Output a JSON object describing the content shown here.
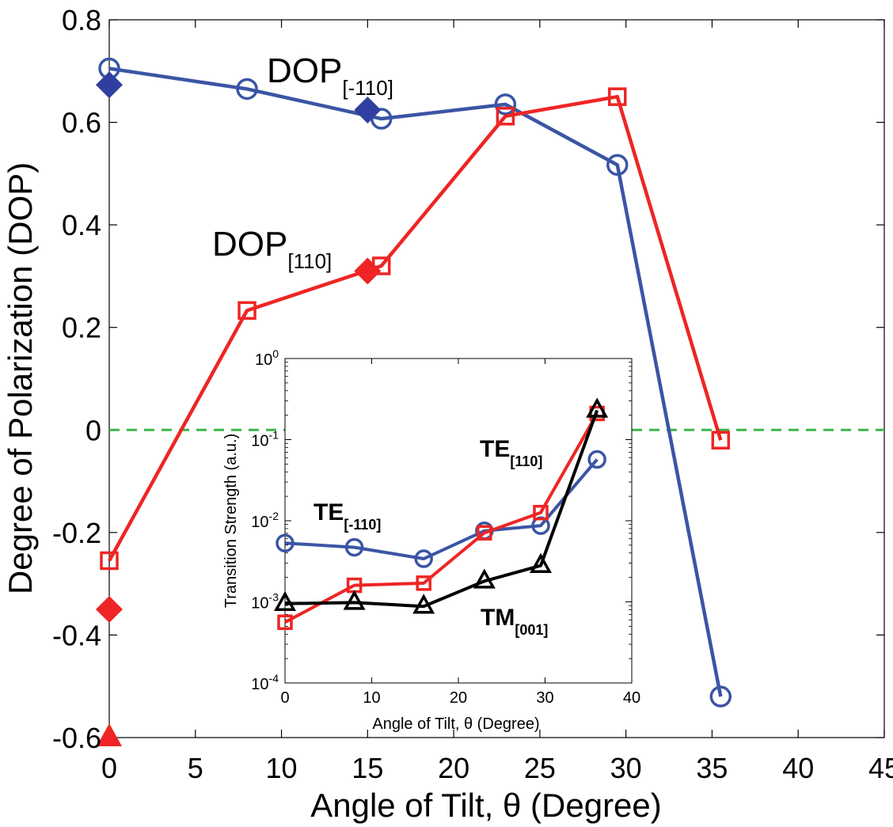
{
  "chart_data": [
    {
      "id": "main",
      "type": "line",
      "xlabel": "Angle of Tilt, θ (Degree)",
      "ylabel": "Degree of Polarization (DOP)",
      "xlim": [
        0,
        45
      ],
      "ylim": [
        -0.6,
        0.8
      ],
      "xticks": [
        "0",
        "5",
        "10",
        "15",
        "20",
        "25",
        "30",
        "35",
        "40",
        "45"
      ],
      "xtick_values": [
        0,
        5,
        10,
        15,
        20,
        25,
        30,
        35,
        40,
        45
      ],
      "yticks": [
        "-0.6",
        "-0.4",
        "-0.2",
        "0",
        "0.2",
        "0.4",
        "0.6",
        "0.8"
      ],
      "ytick_values": [
        -0.6,
        -0.4,
        -0.2,
        0,
        0.2,
        0.4,
        0.6,
        0.8
      ],
      "reference_line": {
        "y": 0,
        "color": "#3db54a",
        "style": "dashed"
      },
      "series": [
        {
          "name": "DOP[-110]",
          "color": "#3a55a4",
          "marker": "circle",
          "x": [
            0,
            8,
            15.8,
            23,
            29.5,
            35.5
          ],
          "y": [
            0.705,
            0.665,
            0.607,
            0.635,
            0.517,
            -0.52
          ]
        },
        {
          "name": "DOP[110]",
          "color": "#ee2524",
          "marker": "square",
          "x": [
            0,
            8,
            15.8,
            23,
            29.5,
            35.5
          ],
          "y": [
            -0.255,
            0.233,
            0.32,
            0.612,
            0.65,
            -0.02
          ]
        },
        {
          "name": "DOP[-110] (filled)",
          "color": "#303f9f",
          "marker": "diamond",
          "x": [
            0,
            15
          ],
          "y": [
            0.673,
            0.624
          ]
        },
        {
          "name": "DOP[110] (filled)",
          "color": "#ee2524",
          "marker": "diamond",
          "x": [
            0,
            15
          ],
          "y": [
            -0.35,
            0.31
          ]
        },
        {
          "name": "filled triangle",
          "color": "#ee2524",
          "marker": "triangle",
          "x": [
            0
          ],
          "y": [
            -0.6
          ]
        }
      ],
      "annotations": {
        "blue": {
          "main": "DOP",
          "sub": "[-110]",
          "color": "#3a55a4"
        },
        "red": {
          "main": "DOP",
          "sub": "[110]",
          "color": "#ee2524"
        }
      }
    },
    {
      "id": "inset",
      "type": "line",
      "yscale": "log",
      "xlabel": "Angle of Tilt, θ (Degree)",
      "ylabel": "Transition Strength (a.u.)",
      "xlim": [
        0,
        40
      ],
      "ylim_exp": [
        -4,
        0
      ],
      "xticks": [
        "0",
        "10",
        "20",
        "30",
        "40"
      ],
      "xtick_values": [
        0,
        10,
        20,
        30,
        40
      ],
      "ytick_exponents": [
        "0",
        "-1",
        "-2",
        "-3",
        "-4"
      ],
      "ytick_base": "10",
      "series": [
        {
          "name": "TE[-110]",
          "color": "#3a55a4",
          "marker": "circle",
          "x": [
            0,
            8,
            16,
            23,
            29.5,
            36
          ],
          "y": [
            0.0053,
            0.0047,
            0.0034,
            0.0075,
            0.0087,
            0.057
          ]
        },
        {
          "name": "TE[110]",
          "color": "#ee2524",
          "marker": "square",
          "x": [
            0,
            8,
            16,
            23,
            29.5,
            36
          ],
          "y": [
            0.00056,
            0.0016,
            0.0017,
            0.0071,
            0.0126,
            0.21
          ]
        },
        {
          "name": "TM[001]",
          "color": "#000000",
          "marker": "triangle",
          "x": [
            0,
            8,
            16,
            23,
            29.5,
            36
          ],
          "y": [
            0.00095,
            0.00098,
            0.00088,
            0.0018,
            0.0028,
            0.23
          ]
        }
      ],
      "annotations": {
        "te110": {
          "main": "TE",
          "sub": "[110]",
          "color": "#ee2524"
        },
        "tem110": {
          "main": "TE",
          "sub": "[-110]",
          "color": "#3a55a4"
        },
        "tm001": {
          "main": "TM",
          "sub": "[001]",
          "color": "#000000"
        }
      }
    }
  ]
}
